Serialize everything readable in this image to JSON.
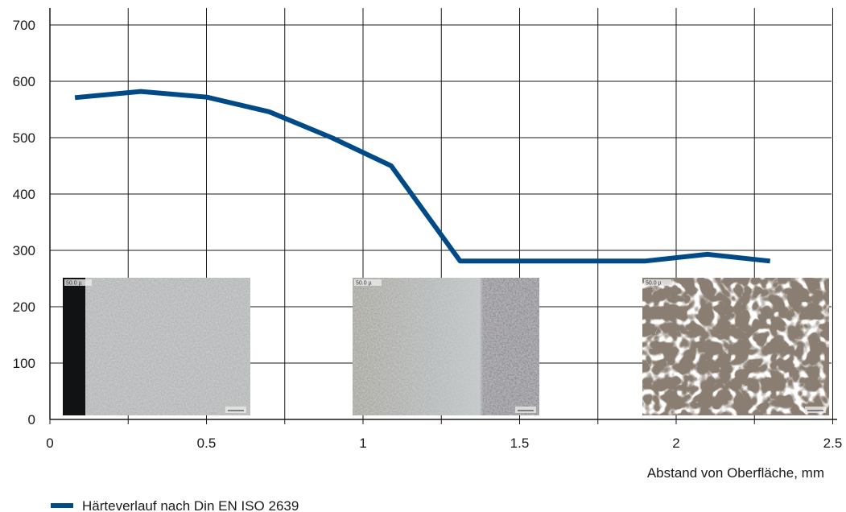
{
  "chart_data": {
    "type": "line",
    "title": "",
    "xlabel": "Abstand von Oberfläche, mm",
    "ylabel": "",
    "xlim": [
      0,
      2.5
    ],
    "ylim": [
      0,
      720
    ],
    "x_ticks": [
      0,
      0.5,
      1,
      1.5,
      2,
      2.5
    ],
    "x_tick_labels": [
      "0",
      "0.5",
      "1",
      "1.5",
      "2",
      "2.5"
    ],
    "x_gridlines": [
      0.25,
      0.5,
      0.75,
      1,
      1.25,
      1.5,
      1.75,
      2,
      2.25,
      2.5
    ],
    "y_ticks": [
      0,
      100,
      200,
      300,
      400,
      500,
      600,
      700
    ],
    "y_tick_labels": [
      "0",
      "100",
      "200",
      "300",
      "400",
      "500",
      "600",
      "700"
    ],
    "grid": true,
    "legend_position": "bottom-left",
    "series": [
      {
        "name": "Härteverlauf nach Din EN ISO 2639",
        "color": "#004b87",
        "x": [
          0.08,
          0.29,
          0.5,
          0.7,
          0.9,
          1.09,
          1.31,
          1.5,
          1.7,
          1.9,
          2.1,
          2.3
        ],
        "y": [
          571,
          582,
          572,
          546,
          500,
          450,
          281,
          281,
          281,
          281,
          293,
          281
        ]
      }
    ],
    "insets": [
      {
        "name": "micrograph-surface",
        "label": "50.0 µ"
      },
      {
        "name": "micrograph-transition",
        "label": "50.0 µ"
      },
      {
        "name": "micrograph-core",
        "label": "50.0 µ"
      }
    ]
  }
}
